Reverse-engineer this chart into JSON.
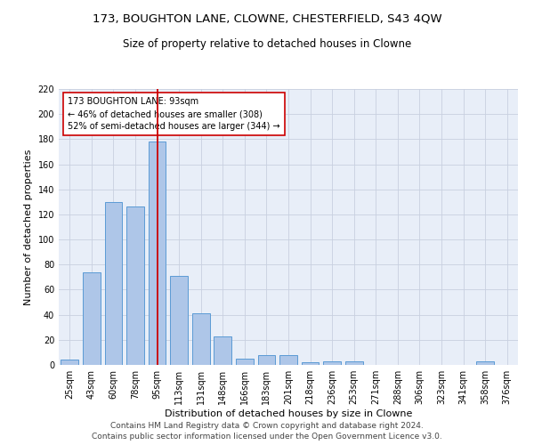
{
  "title1": "173, BOUGHTON LANE, CLOWNE, CHESTERFIELD, S43 4QW",
  "title2": "Size of property relative to detached houses in Clowne",
  "xlabel": "Distribution of detached houses by size in Clowne",
  "ylabel": "Number of detached properties",
  "footer1": "Contains HM Land Registry data © Crown copyright and database right 2024.",
  "footer2": "Contains public sector information licensed under the Open Government Licence v3.0.",
  "categories": [
    "25sqm",
    "43sqm",
    "60sqm",
    "78sqm",
    "95sqm",
    "113sqm",
    "131sqm",
    "148sqm",
    "166sqm",
    "183sqm",
    "201sqm",
    "218sqm",
    "236sqm",
    "253sqm",
    "271sqm",
    "288sqm",
    "306sqm",
    "323sqm",
    "341sqm",
    "358sqm",
    "376sqm"
  ],
  "values": [
    4,
    74,
    130,
    126,
    178,
    71,
    41,
    23,
    5,
    8,
    8,
    2,
    3,
    3,
    0,
    0,
    0,
    0,
    0,
    3,
    0
  ],
  "bar_color": "#aec6e8",
  "bar_edge_color": "#5b9bd5",
  "property_line_bin_index": 4,
  "annotation_text": "173 BOUGHTON LANE: 93sqm\n← 46% of detached houses are smaller (308)\n52% of semi-detached houses are larger (344) →",
  "annotation_box_color": "#ffffff",
  "annotation_box_edge_color": "#cc0000",
  "vline_color": "#cc0000",
  "ylim": [
    0,
    220
  ],
  "yticks": [
    0,
    20,
    40,
    60,
    80,
    100,
    120,
    140,
    160,
    180,
    200,
    220
  ],
  "background_color": "#ffffff",
  "grid_color": "#c8d0e0",
  "title1_fontsize": 9.5,
  "title2_fontsize": 8.5,
  "xlabel_fontsize": 8,
  "ylabel_fontsize": 8,
  "tick_fontsize": 7,
  "footer_fontsize": 6.5,
  "annotation_fontsize": 7
}
